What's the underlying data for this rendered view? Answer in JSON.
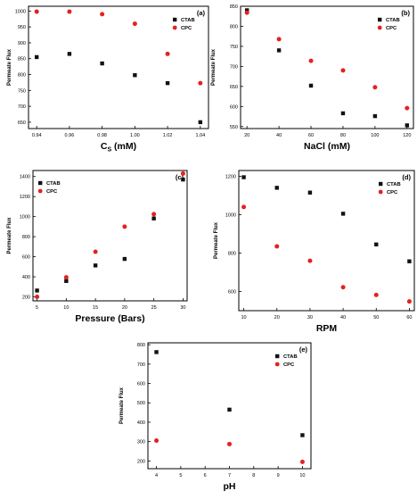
{
  "colors": {
    "CTAB": "#111111",
    "CPC": "#e3221f",
    "frame": "#000000"
  },
  "chart_data": [
    {
      "type": "scatter",
      "panel_label": "(a)",
      "xlabel_main": "C",
      "xlabel_sub": "S",
      "xlabel_unit": " (mM)",
      "ylabel": "Permeate Flux",
      "xlim": [
        0.935,
        1.045
      ],
      "ylim": [
        630,
        1015
      ],
      "xticks": [
        0.94,
        0.96,
        0.98,
        1.0,
        1.02,
        1.04
      ],
      "xtick_labels": [
        "0.94",
        "0.96",
        "0.98",
        "1.00",
        "1.02",
        "1.04"
      ],
      "yticks": [
        650,
        700,
        750,
        800,
        850,
        900,
        950,
        1000
      ],
      "ytick_labels": [
        "650",
        "700",
        "750",
        "800",
        "850",
        "900",
        "950",
        "1000"
      ],
      "legend_position": "top-right",
      "x": [
        0.94,
        0.96,
        0.98,
        1.0,
        1.02,
        1.04
      ],
      "series": [
        {
          "name": "CTAB",
          "values": [
            855,
            865,
            835,
            798,
            773,
            650
          ]
        },
        {
          "name": "CPC",
          "values": [
            998,
            998,
            990,
            960,
            865,
            773
          ]
        }
      ]
    },
    {
      "type": "scatter",
      "panel_label": "(b)",
      "xlabel": "NaCl (mM)",
      "ylabel": "Permeate Flux",
      "xlim": [
        16,
        124
      ],
      "ylim": [
        545,
        850
      ],
      "xticks": [
        20,
        40,
        60,
        80,
        100,
        120
      ],
      "xtick_labels": [
        "20",
        "40",
        "60",
        "80",
        "100",
        "120"
      ],
      "yticks": [
        550,
        600,
        650,
        700,
        750,
        800,
        850
      ],
      "ytick_labels": [
        "550",
        "600",
        "650",
        "700",
        "750",
        "800",
        "850"
      ],
      "legend_position": "top-right",
      "x": [
        20,
        40,
        60,
        80,
        100,
        120
      ],
      "series": [
        {
          "name": "CTAB",
          "values": [
            840,
            740,
            652,
            583,
            576,
            553
          ]
        },
        {
          "name": "CPC",
          "values": [
            834,
            768,
            714,
            690,
            648,
            596
          ]
        }
      ]
    },
    {
      "type": "scatter",
      "panel_label": "(c)",
      "xlabel": "Pressure (Bars)",
      "ylabel": "Permeate Flux",
      "xlim": [
        4.3,
        30.7
      ],
      "ylim": [
        160,
        1460
      ],
      "xticks": [
        5,
        10,
        15,
        20,
        25,
        30
      ],
      "xtick_labels": [
        "5",
        "10",
        "15",
        "20",
        "25",
        "30"
      ],
      "yticks": [
        200,
        400,
        600,
        800,
        1000,
        1200,
        1400
      ],
      "ytick_labels": [
        "200",
        "400",
        "600",
        "800",
        "1000",
        "1200",
        "1400"
      ],
      "legend_position": "top-left",
      "x": [
        5,
        10,
        15,
        20,
        25,
        30
      ],
      "series": [
        {
          "name": "CTAB",
          "values": [
            263,
            358,
            513,
            578,
            982,
            1370
          ]
        },
        {
          "name": "CPC",
          "values": [
            200,
            395,
            650,
            900,
            1025,
            1430
          ]
        }
      ]
    },
    {
      "type": "scatter",
      "panel_label": "(d)",
      "xlabel": "RPM",
      "ylabel": "Permeate Flux",
      "xlim": [
        8.5,
        61.5
      ],
      "ylim": [
        500,
        1230
      ],
      "xticks": [
        10,
        20,
        30,
        40,
        50,
        60
      ],
      "xtick_labels": [
        "10",
        "20",
        "30",
        "40",
        "50",
        "60"
      ],
      "yticks": [
        600,
        800,
        1000,
        1200
      ],
      "ytick_labels": [
        "600",
        "800",
        "1000",
        "1200"
      ],
      "legend_position": "top-right",
      "x": [
        10,
        20,
        30,
        40,
        50,
        60
      ],
      "series": [
        {
          "name": "CTAB",
          "values": [
            1195,
            1140,
            1115,
            1005,
            845,
            757
          ]
        },
        {
          "name": "CPC",
          "values": [
            1040,
            835,
            760,
            622,
            582,
            548
          ]
        }
      ]
    },
    {
      "type": "scatter",
      "panel_label": "(e)",
      "xlabel": "pH",
      "ylabel": "Permeate Flux",
      "xlim": [
        3.65,
        10.35
      ],
      "ylim": [
        160,
        810
      ],
      "xticks": [
        4,
        5,
        6,
        7,
        8,
        9,
        10
      ],
      "xtick_labels": [
        "4",
        "5",
        "6",
        "7",
        "8",
        "9",
        "10"
      ],
      "yticks": [
        200,
        300,
        400,
        500,
        600,
        700,
        800
      ],
      "ytick_labels": [
        "200",
        "300",
        "400",
        "500",
        "600",
        "700",
        "800"
      ],
      "legend_position": "top-right",
      "x": [
        4,
        7,
        10
      ],
      "series": [
        {
          "name": "CTAB",
          "values": [
            762,
            465,
            333
          ]
        },
        {
          "name": "CPC",
          "values": [
            305,
            287,
            195
          ]
        }
      ]
    }
  ]
}
